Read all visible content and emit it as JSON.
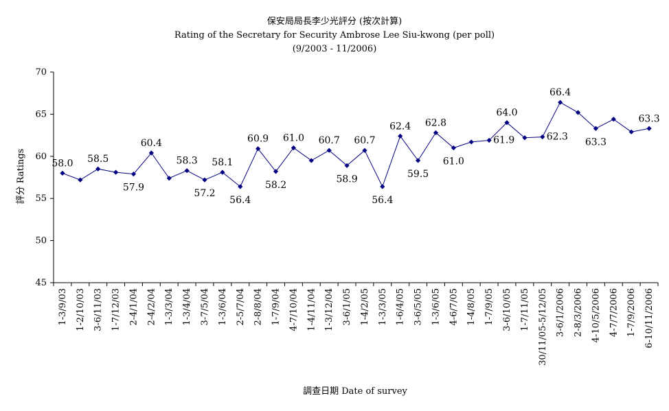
{
  "chart_data": {
    "type": "line",
    "title": "保安局局長李少光評分 (按次計算)",
    "subtitle": "Rating of the Secretary for Security Ambrose Lee Siu-kwong  (per poll)",
    "subtitle2": "(9/2003 - 11/2006)",
    "xlabel": "調查日期 Date of survey",
    "ylabel": "評分 Ratings",
    "ylim": [
      45,
      70
    ],
    "yticks": [
      45,
      50,
      55,
      60,
      65,
      70
    ],
    "grid": false,
    "legend": "none",
    "line_color": "#000080",
    "categories": [
      "1-3/9/03",
      "1-2/10/03",
      "3-6/11/03",
      "1-7/12/03",
      "2-4/1/04",
      "2-4/2/04",
      "1-3/3/04",
      "1-3/4/04",
      "3-7/5/04",
      "1-3/6/04",
      "2-5/7/04",
      "2-8/8/04",
      "1-7/9/04",
      "4-7/10/04",
      "1-4/11/04",
      "1-3/12/04",
      "3-6/1/05",
      "1-4/2/05",
      "1-3/3/05",
      "1-6/4/05",
      "3-6/5/05",
      "1-3/6/05",
      "4-6/7/05",
      "1-4/8/05",
      "1-7/9/05",
      "3-6/10/05",
      "1-7/11/05",
      "30/11/05-5/12/05",
      "3-6/1/2006",
      "2-8/3/2006",
      "4-10/5/2006",
      "4-7/7/2006",
      "1-7/9/2006",
      "6-10/11/2006"
    ],
    "values": [
      58.0,
      57.2,
      58.5,
      58.1,
      57.9,
      60.4,
      57.4,
      58.3,
      57.2,
      58.1,
      56.4,
      60.9,
      58.2,
      61.0,
      59.5,
      60.7,
      58.9,
      60.7,
      56.4,
      62.4,
      59.5,
      62.8,
      61.0,
      61.7,
      61.9,
      64.0,
      62.2,
      62.3,
      66.4,
      65.2,
      63.3,
      64.4,
      62.9,
      63.3
    ],
    "data_labels": [
      {
        "i": 0,
        "text": "58.0"
      },
      {
        "i": 2,
        "text": "58.5"
      },
      {
        "i": 4,
        "text": "57.9"
      },
      {
        "i": 5,
        "text": "60.4"
      },
      {
        "i": 7,
        "text": "58.3"
      },
      {
        "i": 8,
        "text": "57.2"
      },
      {
        "i": 9,
        "text": "58.1"
      },
      {
        "i": 10,
        "text": "56.4"
      },
      {
        "i": 11,
        "text": "60.9"
      },
      {
        "i": 12,
        "text": "58.2"
      },
      {
        "i": 13,
        "text": "61.0"
      },
      {
        "i": 15,
        "text": "60.7"
      },
      {
        "i": 16,
        "text": "58.9"
      },
      {
        "i": 17,
        "text": "60.7"
      },
      {
        "i": 18,
        "text": "56.4"
      },
      {
        "i": 19,
        "text": "62.4"
      },
      {
        "i": 20,
        "text": "59.5"
      },
      {
        "i": 21,
        "text": "62.8"
      },
      {
        "i": 22,
        "text": "61.0"
      },
      {
        "i": 24,
        "text": "61.9"
      },
      {
        "i": 25,
        "text": "64.0"
      },
      {
        "i": 27,
        "text": "62.3"
      },
      {
        "i": 28,
        "text": "66.4"
      },
      {
        "i": 30,
        "text": "63.3"
      },
      {
        "i": 33,
        "text": "63.3"
      }
    ]
  }
}
